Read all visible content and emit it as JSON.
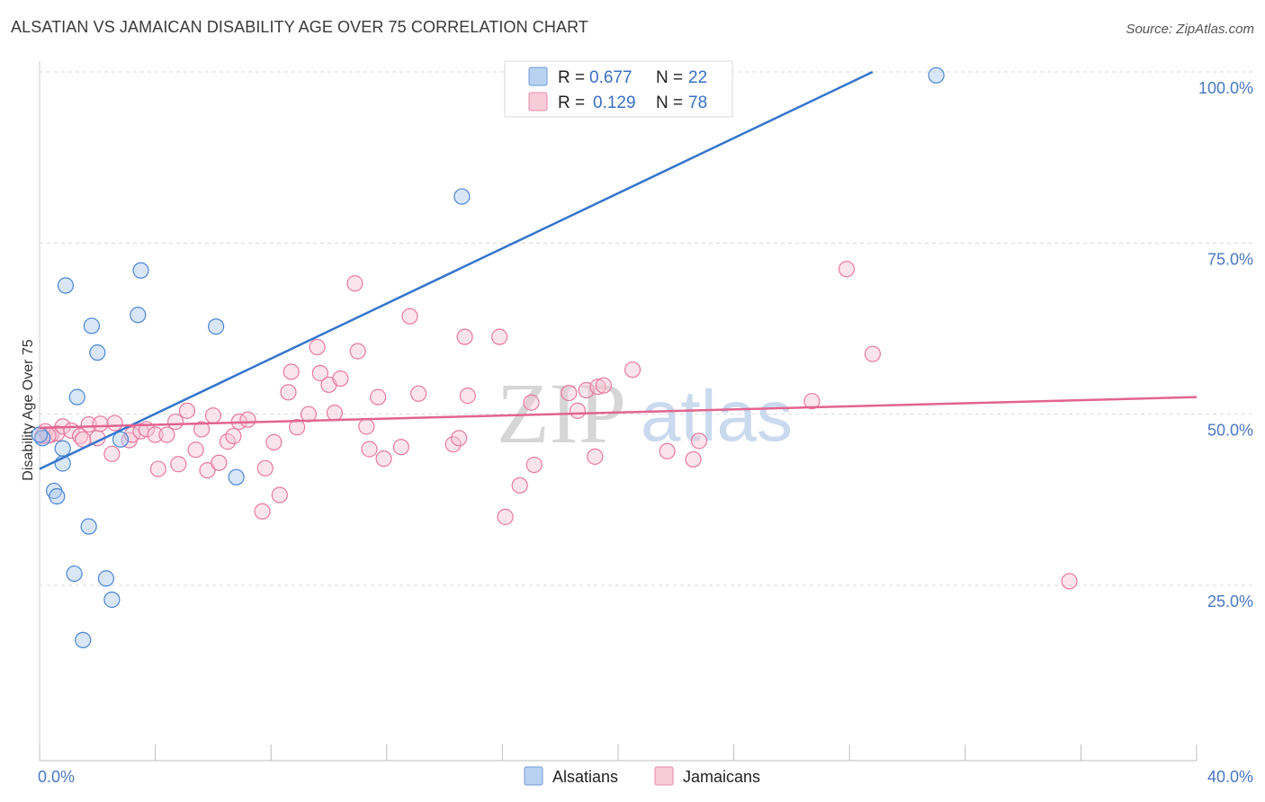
{
  "header": {
    "title": "ALSATIAN VS JAMAICAN DISABILITY AGE OVER 75 CORRELATION CHART",
    "source": "Source: ZipAtlas.com"
  },
  "colors": {
    "blue": "#4a86d6",
    "blue_fill": "#aac8f0",
    "pink": "#e87aa0",
    "pink_fill": "#f6c3d3",
    "grid": "#d9d9d9",
    "axis_text": "#4a78c2"
  },
  "legend": {
    "rows": [
      {
        "r_label": "R =",
        "r_value": "0.677",
        "n_label": "N =",
        "n_value": "22"
      },
      {
        "r_label": "R =",
        "r_value": "0.129",
        "n_label": "N =",
        "n_value": "78"
      }
    ]
  },
  "watermark": {
    "zip": "ZIP",
    "atlas": "atlas"
  },
  "chart_data": {
    "type": "scatter",
    "title": "ALSATIAN VS JAMAICAN DISABILITY AGE OVER 75 CORRELATION CHART",
    "xlabel": "",
    "ylabel": "Disability Age Over 75",
    "xlim": [
      0,
      40
    ],
    "ylim": [
      0,
      105
    ],
    "x_tick_labels": [
      "0.0%",
      "40.0%"
    ],
    "y_ticks": [
      25,
      50,
      75,
      100
    ],
    "y_tick_labels": [
      "25.0%",
      "50.0%",
      "75.0%",
      "100.0%"
    ],
    "grid": true,
    "series": [
      {
        "name": "Alsatians",
        "color": "#4a86d6",
        "points": [
          [
            0.1,
            46.5
          ],
          [
            0.5,
            38.8
          ],
          [
            0.6,
            38.0
          ],
          [
            0.8,
            45.0
          ],
          [
            0.8,
            42.8
          ],
          [
            0.9,
            68.8
          ],
          [
            1.2,
            26.7
          ],
          [
            1.3,
            52.5
          ],
          [
            1.5,
            17.0
          ],
          [
            1.7,
            33.6
          ],
          [
            1.8,
            62.9
          ],
          [
            2.0,
            59.0
          ],
          [
            2.3,
            26.0
          ],
          [
            2.5,
            22.9
          ],
          [
            2.8,
            46.3
          ],
          [
            3.4,
            64.5
          ],
          [
            3.5,
            71.0
          ],
          [
            6.1,
            62.8
          ],
          [
            6.8,
            40.8
          ],
          [
            14.6,
            81.8
          ],
          [
            31.0,
            99.5
          ],
          [
            0.0,
            47.0
          ]
        ],
        "trend": {
          "x": [
            0,
            28.8
          ],
          "y": [
            42.0,
            100.0
          ]
        }
      },
      {
        "name": "Jamaicans",
        "color": "#e87aa0",
        "points": [
          [
            0.1,
            46.8
          ],
          [
            0.2,
            47.5
          ],
          [
            0.4,
            47.0
          ],
          [
            0.6,
            47.2
          ],
          [
            0.8,
            48.2
          ],
          [
            1.1,
            47.6
          ],
          [
            1.4,
            46.8
          ],
          [
            1.5,
            46.3
          ],
          [
            1.7,
            48.5
          ],
          [
            2.0,
            46.5
          ],
          [
            2.1,
            48.6
          ],
          [
            2.5,
            44.2
          ],
          [
            2.6,
            48.7
          ],
          [
            3.1,
            46.2
          ],
          [
            3.2,
            47.0
          ],
          [
            3.5,
            47.5
          ],
          [
            3.7,
            47.8
          ],
          [
            4.0,
            47.0
          ],
          [
            4.1,
            42.0
          ],
          [
            4.4,
            47.0
          ],
          [
            4.7,
            48.9
          ],
          [
            4.8,
            42.7
          ],
          [
            5.1,
            50.5
          ],
          [
            5.4,
            44.8
          ],
          [
            5.6,
            47.8
          ],
          [
            5.8,
            41.8
          ],
          [
            6.0,
            49.8
          ],
          [
            6.2,
            42.9
          ],
          [
            6.5,
            46.0
          ],
          [
            6.7,
            46.8
          ],
          [
            6.9,
            48.9
          ],
          [
            7.2,
            49.2
          ],
          [
            7.7,
            35.8
          ],
          [
            7.8,
            42.1
          ],
          [
            8.1,
            45.9
          ],
          [
            8.3,
            38.2
          ],
          [
            8.6,
            53.2
          ],
          [
            8.7,
            56.2
          ],
          [
            8.9,
            48.1
          ],
          [
            9.3,
            50.0
          ],
          [
            9.6,
            59.8
          ],
          [
            9.7,
            56.0
          ],
          [
            10.0,
            54.3
          ],
          [
            10.2,
            50.2
          ],
          [
            10.4,
            55.2
          ],
          [
            10.9,
            69.1
          ],
          [
            11.0,
            59.2
          ],
          [
            11.3,
            48.2
          ],
          [
            11.4,
            44.9
          ],
          [
            11.7,
            52.5
          ],
          [
            11.9,
            43.5
          ],
          [
            12.5,
            45.2
          ],
          [
            12.8,
            64.3
          ],
          [
            13.1,
            53.0
          ],
          [
            14.3,
            45.6
          ],
          [
            14.5,
            46.5
          ],
          [
            14.7,
            61.3
          ],
          [
            14.8,
            52.7
          ],
          [
            15.9,
            61.3
          ],
          [
            16.1,
            35.0
          ],
          [
            16.6,
            39.6
          ],
          [
            17.0,
            51.7
          ],
          [
            17.1,
            42.6
          ],
          [
            18.3,
            53.1
          ],
          [
            18.6,
            50.5
          ],
          [
            18.9,
            53.5
          ],
          [
            19.2,
            43.8
          ],
          [
            19.3,
            54.0
          ],
          [
            19.5,
            54.2
          ],
          [
            20.5,
            56.5
          ],
          [
            21.7,
            44.6
          ],
          [
            22.6,
            43.4
          ],
          [
            22.8,
            46.1
          ],
          [
            26.7,
            51.9
          ],
          [
            27.9,
            71.2
          ],
          [
            28.8,
            58.8
          ],
          [
            35.6,
            25.6
          ],
          [
            0.3,
            46.9
          ]
        ],
        "trend": {
          "x": [
            0,
            40
          ],
          "y": [
            48.0,
            52.5
          ]
        }
      }
    ]
  }
}
